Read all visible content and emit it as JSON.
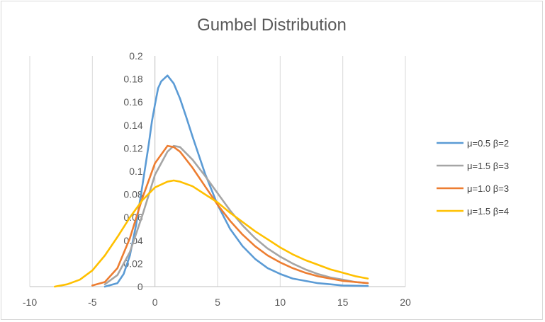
{
  "chart_data": {
    "type": "line",
    "title": "Gumbel Distribution",
    "xlabel": "",
    "ylabel": "",
    "xlim": [
      -10,
      20
    ],
    "ylim": [
      0,
      0.2
    ],
    "x_ticks": [
      "-10",
      "-5",
      "0",
      "5",
      "10",
      "15",
      "20"
    ],
    "y_ticks": [
      "0",
      "0.02",
      "0.04",
      "0.06",
      "0.08",
      "0.1",
      "0.12",
      "0.14",
      "0.16",
      "0.18",
      "0.2"
    ],
    "grid": "vertical",
    "legend_position": "right",
    "series": [
      {
        "name": "μ=0.5 β=2",
        "color": "#5b9bd5",
        "points": [
          [
            -4,
            0.0
          ],
          [
            -3,
            0.003
          ],
          [
            -2.5,
            0.011
          ],
          [
            -2,
            0.027
          ],
          [
            -1.5,
            0.054
          ],
          [
            -1,
            0.088
          ],
          [
            -0.5,
            0.123
          ],
          [
            -0.25,
            0.143
          ],
          [
            0,
            0.158
          ],
          [
            0.25,
            0.172
          ],
          [
            0.5,
            0.178
          ],
          [
            1,
            0.183
          ],
          [
            1.5,
            0.176
          ],
          [
            2,
            0.163
          ],
          [
            2.5,
            0.147
          ],
          [
            3,
            0.13
          ],
          [
            4,
            0.098
          ],
          [
            5,
            0.071
          ],
          [
            6,
            0.05
          ],
          [
            7,
            0.035
          ],
          [
            8,
            0.024
          ],
          [
            9,
            0.016
          ],
          [
            10,
            0.011
          ],
          [
            11,
            0.007
          ],
          [
            12,
            0.005
          ],
          [
            13,
            0.003
          ],
          [
            14,
            0.002
          ],
          [
            15,
            0.001
          ],
          [
            17,
            0.0005
          ]
        ]
      },
      {
        "name": "μ=1.5 β=3",
        "color": "#a5a5a5",
        "points": [
          [
            -4,
            0.002
          ],
          [
            -3,
            0.01
          ],
          [
            -2,
            0.03
          ],
          [
            -1,
            0.062
          ],
          [
            0,
            0.097
          ],
          [
            1,
            0.117
          ],
          [
            1.5,
            0.122
          ],
          [
            2,
            0.121
          ],
          [
            3,
            0.11
          ],
          [
            4,
            0.096
          ],
          [
            5,
            0.081
          ],
          [
            6,
            0.066
          ],
          [
            7,
            0.053
          ],
          [
            8,
            0.042
          ],
          [
            9,
            0.033
          ],
          [
            10,
            0.026
          ],
          [
            11,
            0.02
          ],
          [
            12,
            0.015
          ],
          [
            13,
            0.011
          ],
          [
            14,
            0.008
          ],
          [
            15,
            0.006
          ],
          [
            16,
            0.004
          ],
          [
            17,
            0.003
          ]
        ]
      },
      {
        "name": "μ=1.0 β=3",
        "color": "#ed7d31",
        "points": [
          [
            -5,
            0.001
          ],
          [
            -4,
            0.004
          ],
          [
            -3,
            0.016
          ],
          [
            -2,
            0.042
          ],
          [
            -1,
            0.077
          ],
          [
            0,
            0.107
          ],
          [
            1,
            0.122
          ],
          [
            1.5,
            0.121
          ],
          [
            2,
            0.117
          ],
          [
            3,
            0.103
          ],
          [
            4,
            0.087
          ],
          [
            5,
            0.071
          ],
          [
            6,
            0.057
          ],
          [
            7,
            0.045
          ],
          [
            8,
            0.035
          ],
          [
            9,
            0.027
          ],
          [
            10,
            0.021
          ],
          [
            11,
            0.016
          ],
          [
            12,
            0.012
          ],
          [
            13,
            0.009
          ],
          [
            14,
            0.007
          ],
          [
            15,
            0.005
          ],
          [
            16,
            0.004
          ],
          [
            17,
            0.003
          ]
        ]
      },
      {
        "name": "μ=1.5 β=4",
        "color": "#ffc000",
        "points": [
          [
            -8,
            0.0
          ],
          [
            -7,
            0.002
          ],
          [
            -6,
            0.006
          ],
          [
            -5,
            0.014
          ],
          [
            -4,
            0.027
          ],
          [
            -3,
            0.043
          ],
          [
            -2,
            0.06
          ],
          [
            -1,
            0.075
          ],
          [
            0,
            0.086
          ],
          [
            1,
            0.091
          ],
          [
            1.5,
            0.092
          ],
          [
            2,
            0.091
          ],
          [
            3,
            0.087
          ],
          [
            4,
            0.08
          ],
          [
            5,
            0.073
          ],
          [
            6,
            0.064
          ],
          [
            7,
            0.056
          ],
          [
            8,
            0.048
          ],
          [
            9,
            0.041
          ],
          [
            10,
            0.034
          ],
          [
            11,
            0.028
          ],
          [
            12,
            0.023
          ],
          [
            13,
            0.019
          ],
          [
            14,
            0.015
          ],
          [
            15,
            0.012
          ],
          [
            16,
            0.009
          ],
          [
            17,
            0.007
          ]
        ]
      }
    ]
  }
}
